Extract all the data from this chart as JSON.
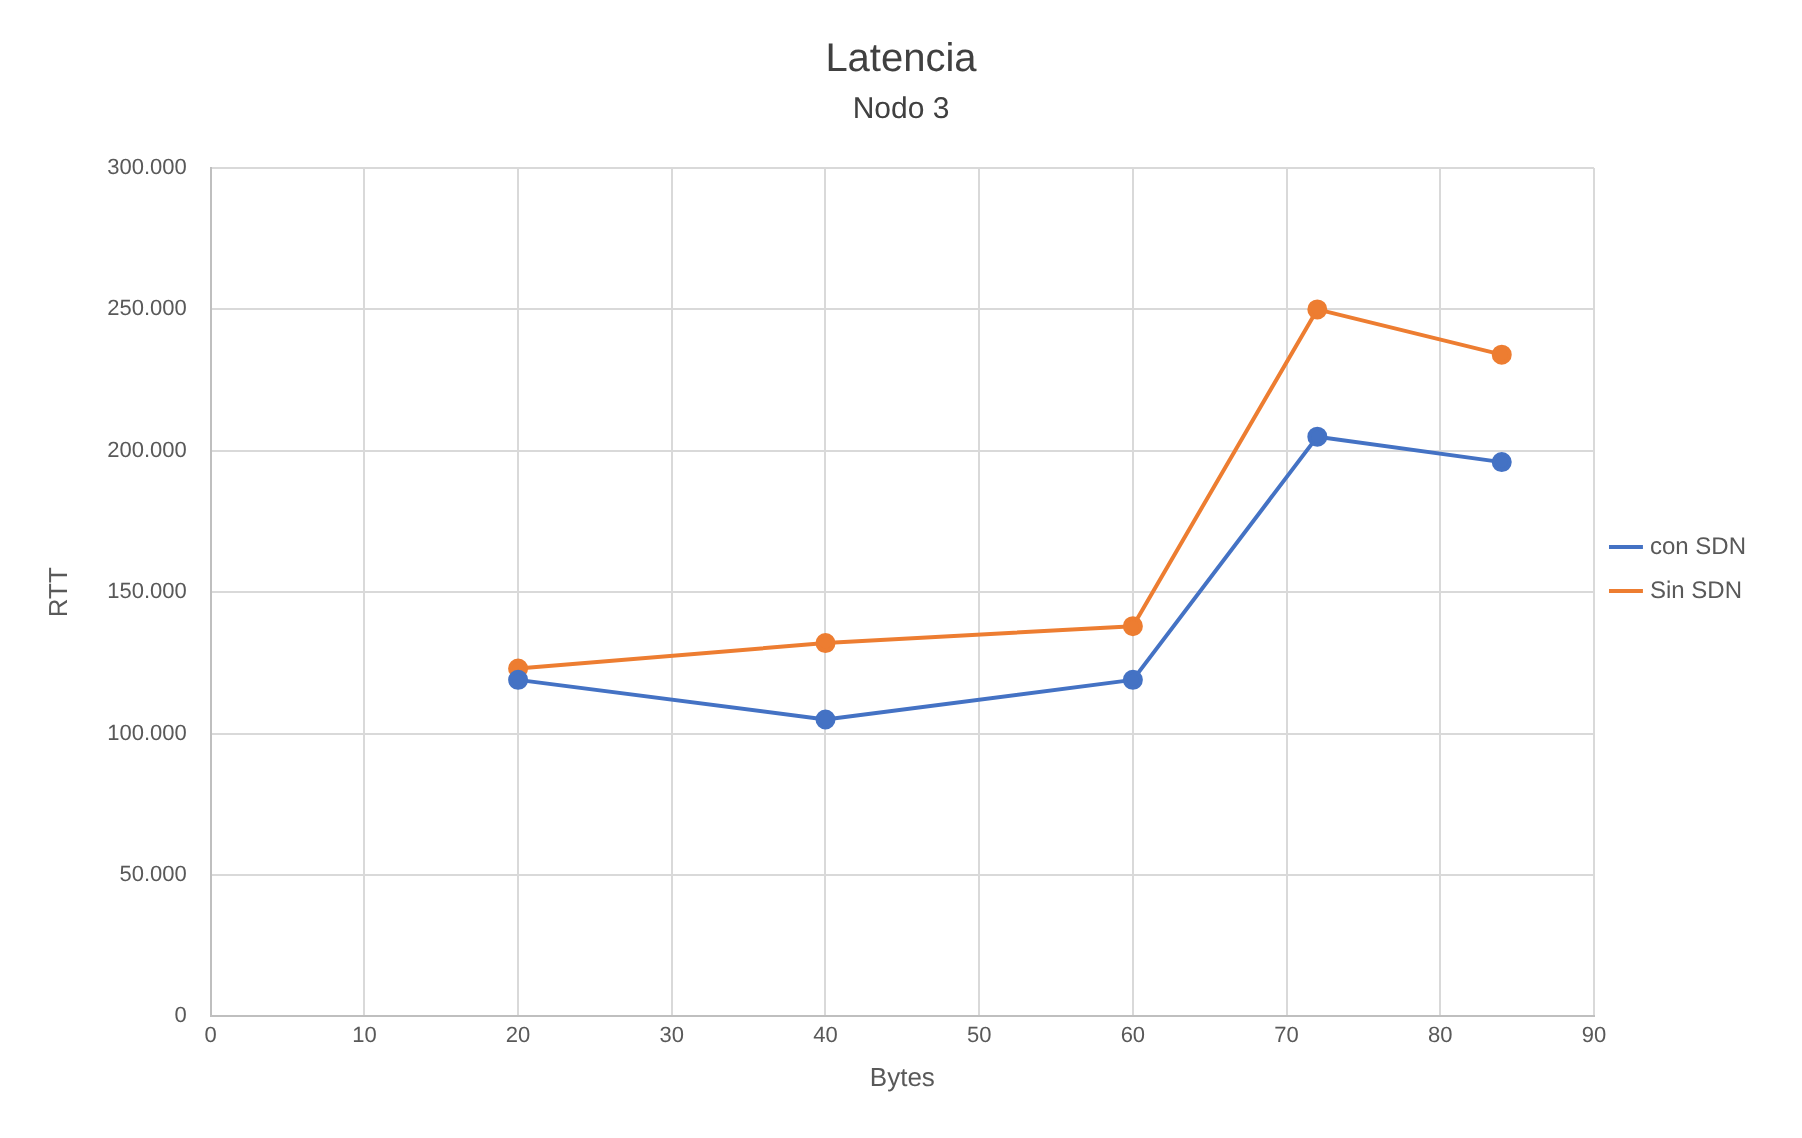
{
  "chart_data": {
    "type": "line",
    "title": "Latencia",
    "subtitle": "Nodo 3",
    "xlabel": "Bytes",
    "ylabel": "RTT",
    "xlim": [
      0,
      90
    ],
    "xticks": [
      0,
      10,
      20,
      30,
      40,
      50,
      60,
      70,
      80,
      90
    ],
    "ylim": [
      0,
      300000
    ],
    "yticks": [
      {
        "value": 0,
        "label": "0"
      },
      {
        "value": 50000,
        "label": "50.000"
      },
      {
        "value": 100000,
        "label": "100.000"
      },
      {
        "value": 150000,
        "label": "150.000"
      },
      {
        "value": 200000,
        "label": "200.000"
      },
      {
        "value": 250000,
        "label": "250.000"
      },
      {
        "value": 300000,
        "label": "300.000"
      }
    ],
    "grid": true,
    "legend": "right",
    "marker": "circle",
    "series": [
      {
        "name": "con SDN",
        "color": "#4472c4",
        "x": [
          20,
          40,
          60,
          72,
          84
        ],
        "values": [
          119000,
          105000,
          119000,
          205000,
          196000
        ]
      },
      {
        "name": "Sin SDN",
        "color": "#ed7d31",
        "x": [
          20,
          40,
          60,
          72,
          84
        ],
        "values": [
          123000,
          132000,
          138000,
          250000,
          234000
        ]
      }
    ]
  }
}
